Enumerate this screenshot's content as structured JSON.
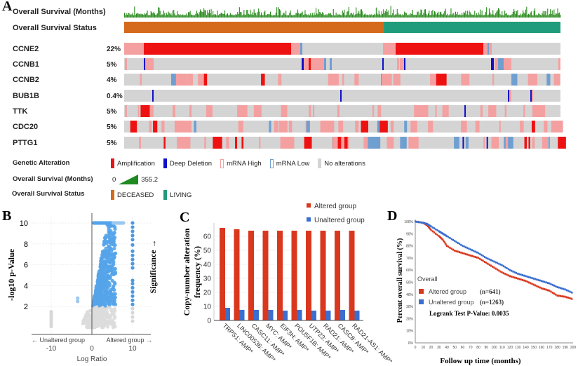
{
  "panel_letters": {
    "a": "A",
    "b": "B",
    "c": "C",
    "d": "D"
  },
  "oncoprint": {
    "clinical_tracks": [
      {
        "label": "Overall Survival (Months)"
      },
      {
        "label": "Overall Survival Status"
      }
    ],
    "genes": [
      {
        "label": "CCNE2",
        "pct": "22%"
      },
      {
        "label": "CCNB1",
        "pct": "5%"
      },
      {
        "label": "CCNB2",
        "pct": "4%"
      },
      {
        "label": "BUB1B",
        "pct": "0.4%"
      },
      {
        "label": "TTK",
        "pct": "5%"
      },
      {
        "label": "CDC20",
        "pct": "5%"
      },
      {
        "label": "PTTG1",
        "pct": "5%"
      }
    ],
    "deceased_fraction": 0.595,
    "legend": {
      "genetic_alteration": {
        "title": "Genetic Alteration",
        "items": [
          {
            "label": "Amplification",
            "color": "#e8141b"
          },
          {
            "label": "Deep Deletion",
            "color": "#1010c8"
          },
          {
            "label": "mRNA High",
            "color": "#f5a0a0"
          },
          {
            "label": "mRNA Low",
            "color": "#6f9fd0"
          },
          {
            "label": "No alterations",
            "color": "#d4d4d4"
          }
        ]
      },
      "survival_months": {
        "title": "Overall Survival (Months)",
        "min": "0",
        "max": "355.2"
      },
      "survival_status": {
        "title": "Overall Survival Status",
        "items": [
          {
            "label": "DECEASED",
            "color": "#d5691c"
          },
          {
            "label": "LIVING",
            "color": "#1f9c7b"
          }
        ]
      }
    }
  },
  "chart_data": [
    {
      "type": "scatter",
      "title": "",
      "xlabel": "Log Ratio",
      "ylabel": "-log10 p-Value",
      "right_label": "Significance →",
      "x_annotations": {
        "left": "← Unaltered group",
        "right": "Altered group →"
      },
      "xticks": [
        "-10",
        "0",
        "10"
      ],
      "yticks": [
        "2",
        "4",
        "6",
        "8",
        "10"
      ],
      "xlim": [
        -15,
        15
      ],
      "ylim": [
        -0.7,
        10.5
      ],
      "significance_threshold": 2,
      "series": [
        {
          "name": "significant-altered-x10",
          "color": "#4a9be0",
          "x": 10,
          "y": [
            10,
            9.6,
            9.2,
            8.8,
            8.4,
            7.9,
            7.3,
            6.9,
            6.5,
            6.1,
            5.7,
            4.5,
            4.2,
            3.8,
            3.4,
            3.0,
            2.6,
            2.2
          ]
        },
        {
          "name": "nonsignificant-x10",
          "color": "#d8d8d8",
          "x": 10,
          "y": [
            1.8,
            1.4,
            1.0,
            0.6
          ]
        },
        {
          "name": "nonsignificant-x-10",
          "color": "#d8d8d8",
          "x": -10,
          "y": [
            0.1,
            0.3,
            0.5,
            0.7,
            0.9,
            1.1,
            1.3,
            1.5
          ]
        },
        {
          "name": "significant-negative",
          "color": "#9cc8ee",
          "x": -3.5,
          "y": [
            2.8,
            2.5
          ]
        }
      ]
    },
    {
      "type": "bar",
      "title": "",
      "xlabel": "",
      "ylabel": "Copy-number alteration frequency (%)",
      "ylim": [
        0,
        68
      ],
      "yticks": [
        0,
        10,
        20,
        30,
        40,
        50,
        60
      ],
      "legend_position": "top",
      "categories": [
        "TRPS1: AMP*",
        "LINC00536: AMP*",
        "CASC11: AMP*",
        "MYC: AMP*",
        "EIF3H: AMP*",
        "POU5F1B: AMP*",
        "UTP23: AMP*",
        "RAD21: AMP*",
        "CASC8: AMP*",
        "RAD21-AS1: AMP*"
      ],
      "series": [
        {
          "name": "Altered group",
          "color": "#d9381e",
          "values": [
            66,
            65,
            64,
            64,
            64,
            64,
            64,
            64,
            64,
            64
          ]
        },
        {
          "name": "Unaltered group",
          "color": "#3a6fd0",
          "values": [
            9,
            7.5,
            7.5,
            7.5,
            7,
            7.5,
            7,
            7,
            7.5,
            7
          ]
        }
      ]
    },
    {
      "type": "line",
      "title": "",
      "xlabel": "Follow up time (months)",
      "ylabel": "Percent overall survival (%)",
      "xlim": [
        0,
        200
      ],
      "ylim": [
        0,
        100
      ],
      "xticks": [
        0,
        10,
        20,
        30,
        40,
        50,
        60,
        70,
        80,
        90,
        100,
        110,
        120,
        130,
        140,
        150,
        160,
        170,
        180,
        190,
        200
      ],
      "yticks": [
        "0%",
        "10%",
        "20%",
        "30%",
        "40%",
        "50%",
        "60%",
        "70%",
        "80%",
        "90%",
        "100%"
      ],
      "legend_title": "Overall",
      "annotation": "Logrank Test P-Value: 0.0035",
      "x": [
        0,
        10,
        15,
        20,
        30,
        35,
        40,
        50,
        60,
        70,
        80,
        90,
        100,
        110,
        120,
        130,
        140,
        150,
        160,
        170,
        180,
        190,
        200
      ],
      "series": [
        {
          "name": "Altered group",
          "n": "(n=641)",
          "color": "#d9381e",
          "values": [
            100,
            99,
            97,
            93,
            88,
            85,
            80,
            76,
            74,
            72,
            70,
            66,
            62,
            58,
            55,
            53,
            51,
            48,
            45,
            43,
            39,
            38,
            36
          ]
        },
        {
          "name": "Unaltered group",
          "n": "(n=1263)",
          "color": "#3a6fd0",
          "values": [
            100,
            99,
            98,
            96,
            92,
            90,
            88,
            84,
            80,
            77,
            74,
            70,
            67,
            64,
            60,
            57,
            55,
            53,
            51,
            49,
            46,
            44,
            41
          ]
        }
      ]
    }
  ]
}
